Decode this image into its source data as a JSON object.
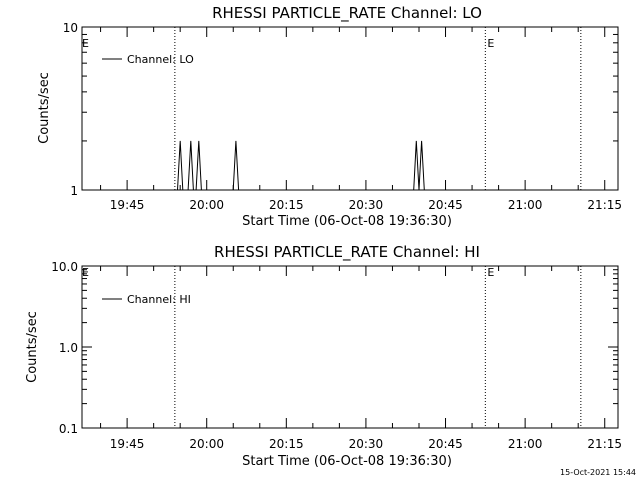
{
  "footer_timestamp": "15-Oct-2021 15:44",
  "chart_data": [
    {
      "type": "line",
      "title": "RHESSI PARTICLE_RATE Channel: LO",
      "xlabel": "Start Time (06-Oct-08 19:36:30)",
      "ylabel": "Counts/sec",
      "yscale": "log",
      "ylim": [
        1,
        10
      ],
      "y_ticks": [
        1,
        10
      ],
      "y_tick_labels": [
        "1",
        "10"
      ],
      "xlim": [
        "19:36:30",
        "21:17:30"
      ],
      "x_ticks": [
        "19:45",
        "20:00",
        "20:15",
        "20:30",
        "20:45",
        "21:00",
        "21:15"
      ],
      "legend": {
        "label": "Channel: LO",
        "placement": "top-left"
      },
      "event_markers": [
        {
          "time": "19:54:00",
          "label": ""
        },
        {
          "time": "20:52:30",
          "label": "E"
        },
        {
          "time": "21:10:30",
          "label": ""
        }
      ],
      "left_marker_label": "E",
      "series": [
        {
          "name": "Channel: LO",
          "points": [
            [
              "19:36:30",
              1
            ],
            [
              "19:54:30",
              1
            ],
            [
              "19:55:00",
              2
            ],
            [
              "19:55:30",
              1
            ],
            [
              "19:56:30",
              1
            ],
            [
              "19:57:00",
              2
            ],
            [
              "19:57:30",
              1
            ],
            [
              "19:58:00",
              1
            ],
            [
              "19:58:30",
              2
            ],
            [
              "19:59:00",
              1
            ],
            [
              "20:05:00",
              1
            ],
            [
              "20:05:30",
              2
            ],
            [
              "20:06:00",
              1
            ],
            [
              "20:39:00",
              1
            ],
            [
              "20:39:30",
              2
            ],
            [
              "20:40:00",
              1
            ],
            [
              "20:40:30",
              2
            ],
            [
              "20:41:00",
              1
            ],
            [
              "21:17:30",
              1
            ]
          ]
        }
      ]
    },
    {
      "type": "line",
      "title": "RHESSI PARTICLE_RATE Channel: HI",
      "xlabel": "Start Time (06-Oct-08 19:36:30)",
      "ylabel": "Counts/sec",
      "yscale": "log",
      "ylim": [
        0.1,
        10
      ],
      "y_ticks": [
        0.1,
        1,
        10
      ],
      "y_tick_labels": [
        "0.1",
        "1.0",
        "10.0"
      ],
      "xlim": [
        "19:36:30",
        "21:17:30"
      ],
      "x_ticks": [
        "19:45",
        "20:00",
        "20:15",
        "20:30",
        "20:45",
        "21:00",
        "21:15"
      ],
      "legend": {
        "label": "Channel: HI",
        "placement": "top-left"
      },
      "event_markers": [
        {
          "time": "19:54:00",
          "label": ""
        },
        {
          "time": "20:52:30",
          "label": "E"
        },
        {
          "time": "21:10:30",
          "label": ""
        }
      ],
      "left_marker_label": "E",
      "series": [
        {
          "name": "Channel: HI",
          "points": []
        }
      ]
    }
  ]
}
